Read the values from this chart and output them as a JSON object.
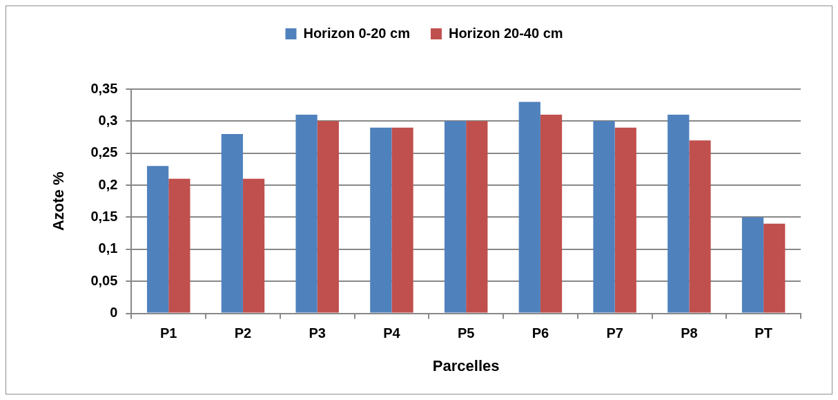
{
  "chart_data": {
    "type": "bar",
    "xlabel": "Parcelles",
    "ylabel": "Azote %",
    "categories": [
      "P1",
      "P2",
      "P3",
      "P4",
      "P5",
      "P6",
      "P7",
      "P8",
      "PT"
    ],
    "series": [
      {
        "name": "Horizon 0-20 cm",
        "color": "#4f81bd",
        "values": [
          0.23,
          0.28,
          0.31,
          0.29,
          0.3,
          0.33,
          0.3,
          0.31,
          0.15
        ]
      },
      {
        "name": "Horizon 20-40 cm",
        "color": "#c0504d",
        "values": [
          0.21,
          0.21,
          0.3,
          0.29,
          0.3,
          0.31,
          0.29,
          0.27,
          0.14
        ]
      }
    ],
    "ylim": [
      0,
      0.35
    ],
    "yticks": [
      0,
      {
        "value": 0.05,
        "label": "0,05"
      },
      {
        "value": 0.1,
        "label": "0,1"
      },
      {
        "value": 0.15,
        "label": "0,15"
      },
      {
        "value": 0.2,
        "label": "0,2"
      },
      {
        "value": 0.25,
        "label": "0,25"
      },
      {
        "value": 0.3,
        "label": "0,3"
      },
      {
        "value": 0.35,
        "label": "0,35"
      }
    ],
    "grid": "y",
    "legend": "top"
  }
}
